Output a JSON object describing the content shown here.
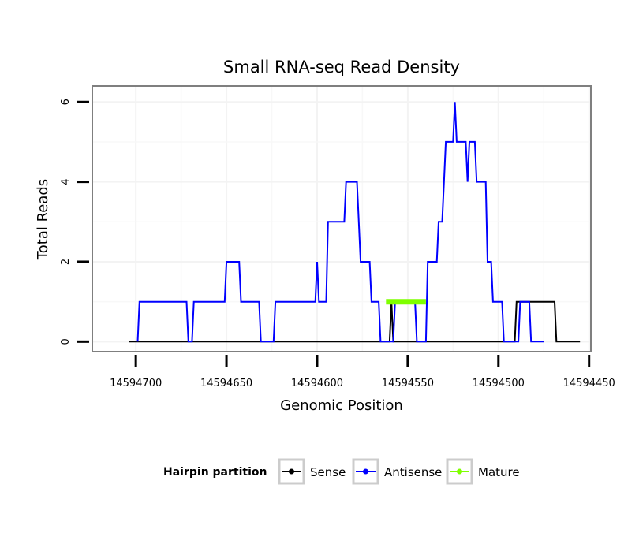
{
  "chart_data": {
    "type": "line",
    "title": "Small RNA-seq Read Density",
    "xlabel": "Genomic Position",
    "ylabel": "Total Reads",
    "xlim": [
      14594724,
      14594449
    ],
    "x_reversed": true,
    "ylim": [
      -0.25,
      6.4
    ],
    "x_ticks": [
      14594700,
      14594650,
      14594600,
      14594550,
      14594500,
      14594450
    ],
    "x_tick_labels": [
      "14594700",
      "14594650",
      "14594600",
      "14594550",
      "14594500",
      "14594450"
    ],
    "y_ticks": [
      0,
      2,
      4,
      6
    ],
    "y_tick_labels": [
      "0",
      "2",
      "4",
      "6"
    ],
    "grid": true,
    "legend": {
      "title": "Hairpin partition",
      "placement": "bottom",
      "entries": [
        "Sense",
        "Antisense",
        "Mature"
      ]
    },
    "series": [
      {
        "name": "Sense",
        "color": "#000000",
        "points": [
          [
            14594704,
            0
          ],
          [
            14594560,
            0
          ],
          [
            14594559,
            1
          ],
          [
            14594558,
            0
          ],
          [
            14594491,
            0
          ],
          [
            14594490,
            1
          ],
          [
            14594469,
            1
          ],
          [
            14594468,
            0
          ],
          [
            14594455,
            0
          ]
        ]
      },
      {
        "name": "Antisense",
        "color": "#0000ff",
        "points": [
          [
            14594699,
            0
          ],
          [
            14594698,
            1
          ],
          [
            14594672,
            1
          ],
          [
            14594671,
            0
          ],
          [
            14594669,
            0
          ],
          [
            14594668,
            1
          ],
          [
            14594651,
            1
          ],
          [
            14594650,
            2
          ],
          [
            14594643,
            2
          ],
          [
            14594642,
            1
          ],
          [
            14594632,
            1
          ],
          [
            14594631,
            0
          ],
          [
            14594624,
            0
          ],
          [
            14594623,
            1
          ],
          [
            14594601,
            1
          ],
          [
            14594600,
            2
          ],
          [
            14594599,
            1
          ],
          [
            14594595,
            1
          ],
          [
            14594594,
            3
          ],
          [
            14594585,
            3
          ],
          [
            14594584,
            4
          ],
          [
            14594578,
            4
          ],
          [
            14594577,
            3
          ],
          [
            14594576,
            2
          ],
          [
            14594571,
            2
          ],
          [
            14594570,
            1
          ],
          [
            14594566,
            1
          ],
          [
            14594565,
            0
          ],
          [
            14594558,
            0
          ],
          [
            14594557,
            1
          ],
          [
            14594546,
            1
          ],
          [
            14594545,
            0
          ],
          [
            14594540,
            0
          ],
          [
            14594539,
            2
          ],
          [
            14594534,
            2
          ],
          [
            14594533,
            3
          ],
          [
            14594531,
            3
          ],
          [
            14594530,
            4
          ],
          [
            14594529,
            5
          ],
          [
            14594525,
            5
          ],
          [
            14594524,
            6
          ],
          [
            14594523,
            5
          ],
          [
            14594518,
            5
          ],
          [
            14594517,
            4
          ],
          [
            14594516,
            5
          ],
          [
            14594513,
            5
          ],
          [
            14594512,
            4
          ],
          [
            14594507,
            4
          ],
          [
            14594506,
            2
          ],
          [
            14594504,
            2
          ],
          [
            14594503,
            1
          ],
          [
            14594498,
            1
          ],
          [
            14594497,
            0
          ],
          [
            14594489,
            0
          ],
          [
            14594488,
            1
          ],
          [
            14594483,
            1
          ],
          [
            14594482,
            0
          ],
          [
            14594475,
            0
          ]
        ]
      },
      {
        "name": "Mature",
        "color": "#7fff00",
        "points": [
          [
            14594562,
            1
          ],
          [
            14594540,
            1
          ]
        ]
      }
    ]
  }
}
